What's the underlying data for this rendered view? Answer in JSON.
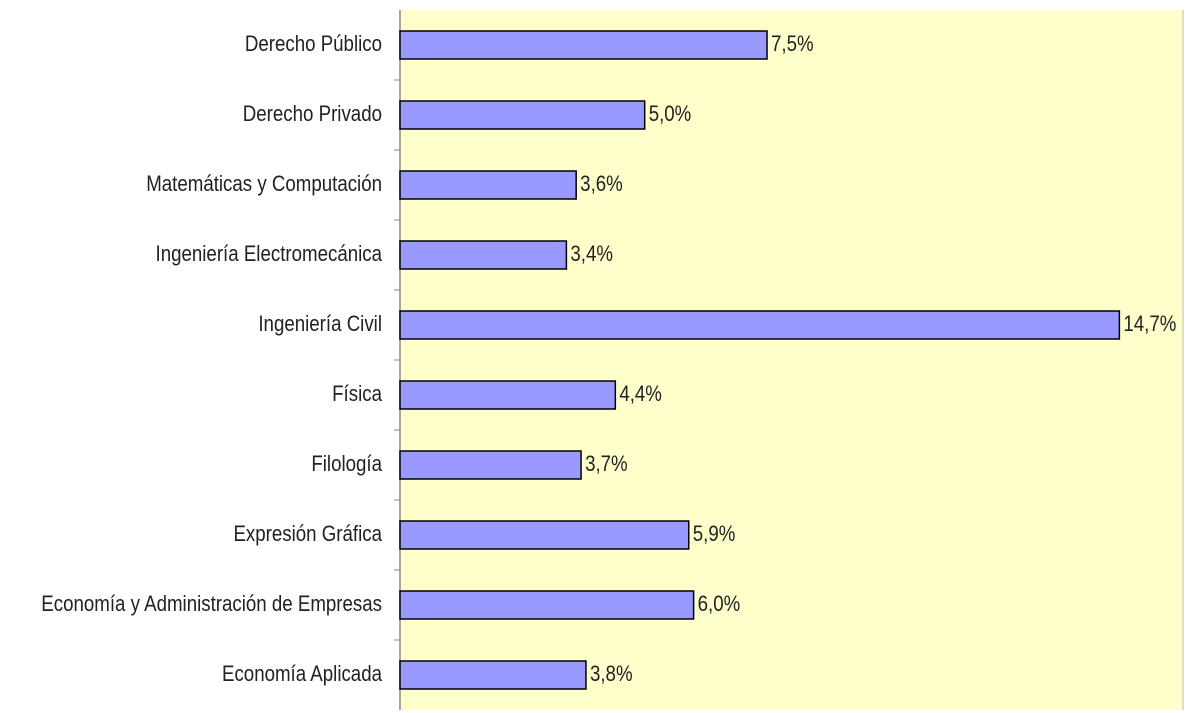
{
  "chart_data": {
    "type": "barh",
    "categories": [
      "Derecho Público",
      "Derecho Privado",
      "Matemáticas y Computación",
      "Ingeniería Electromecánica",
      "Ingeniería Civil",
      "Física",
      "Filología",
      "Expresión Gráfica",
      "Economía y Administración de Empresas",
      "Economía Aplicada"
    ],
    "values": [
      7.5,
      5.0,
      3.6,
      3.4,
      14.7,
      4.4,
      3.7,
      5.9,
      6.0,
      3.8
    ],
    "value_labels": [
      "7,5%",
      "5,0%",
      "3,6%",
      "3,4%",
      "14,7%",
      "4,4%",
      "3,7%",
      "5,9%",
      "6,0%",
      "3,8%"
    ],
    "color": "#9999ff",
    "xlim": [
      0,
      16
    ]
  }
}
